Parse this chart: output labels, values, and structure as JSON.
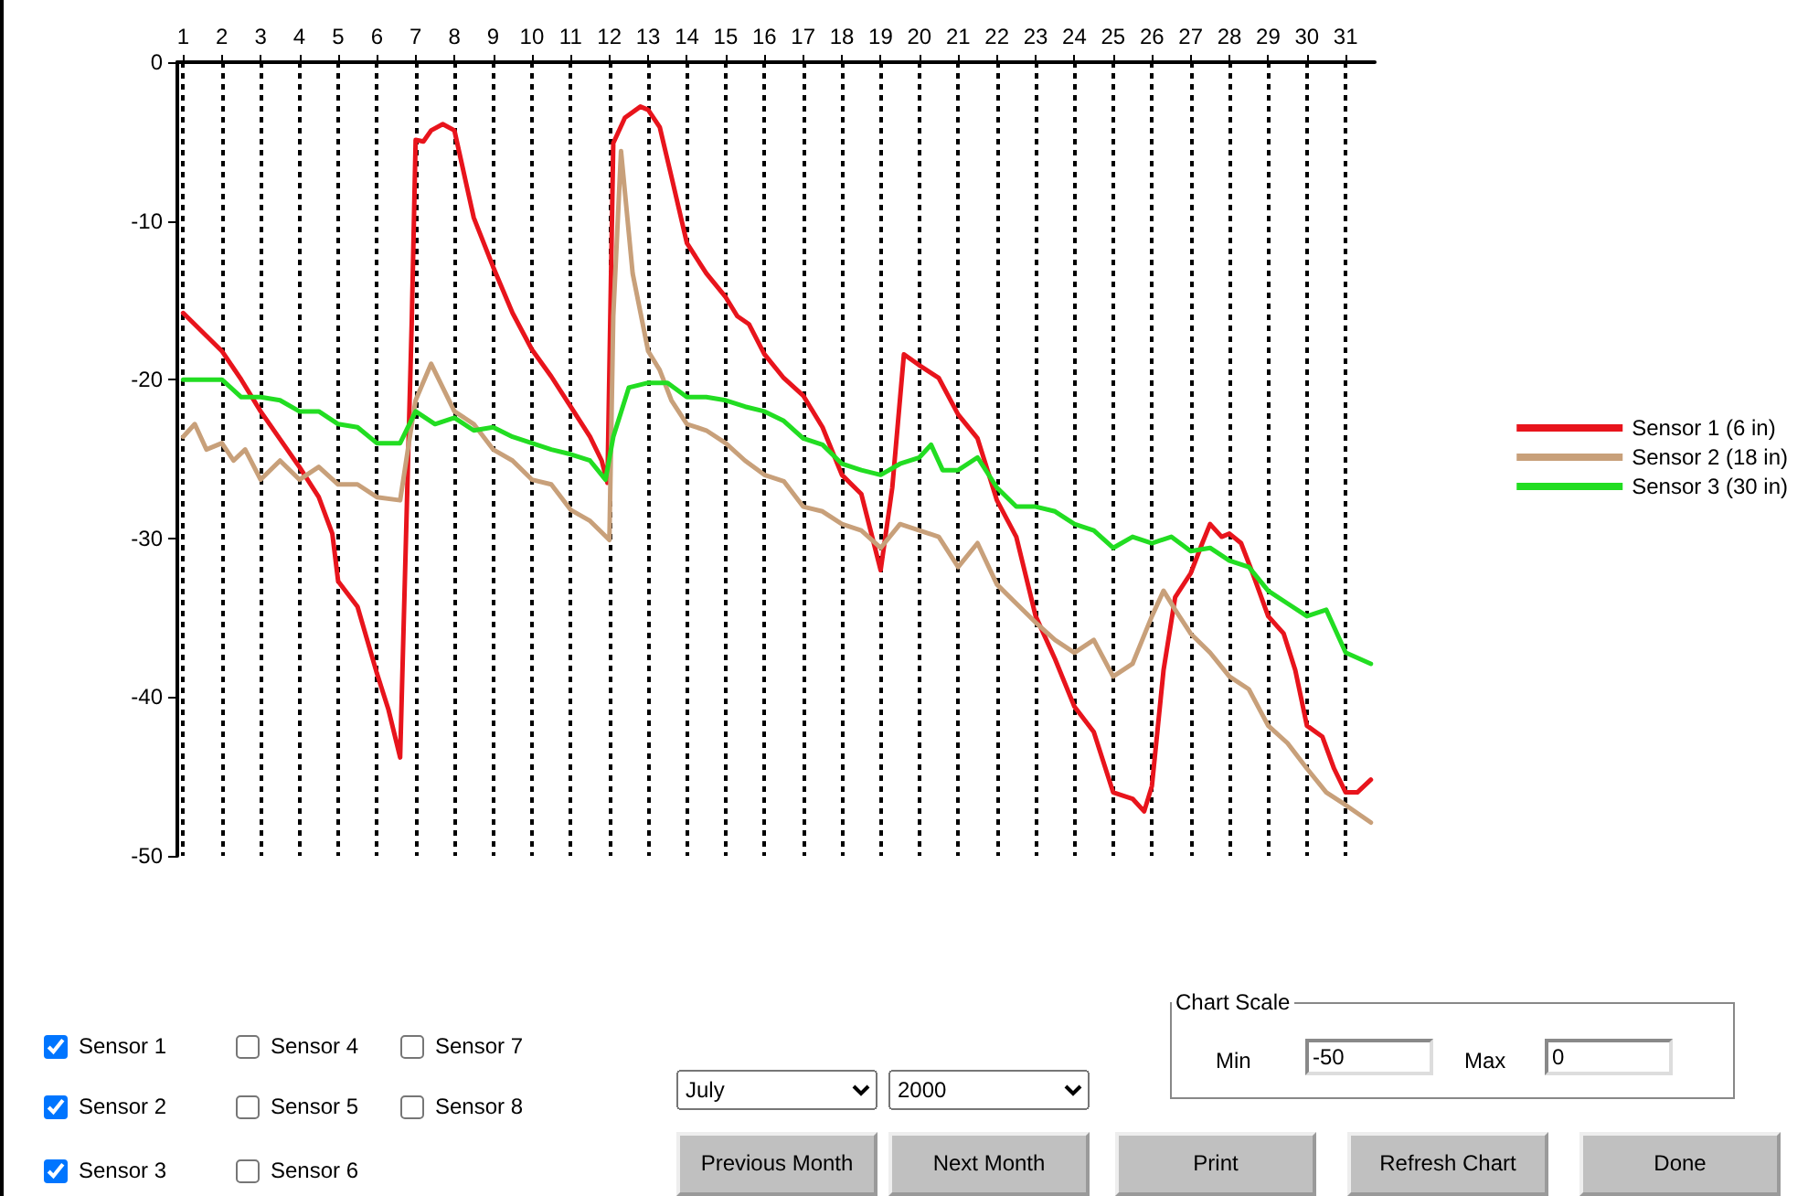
{
  "chart_data": {
    "type": "line",
    "xlim": [
      0.85,
      31.75
    ],
    "xticks": [
      1,
      2,
      3,
      4,
      5,
      6,
      7,
      8,
      9,
      10,
      11,
      12,
      13,
      14,
      15,
      16,
      17,
      18,
      19,
      20,
      21,
      22,
      23,
      24,
      25,
      26,
      27,
      28,
      29,
      30,
      31
    ],
    "ylim": [
      -50,
      0
    ],
    "yticks": [
      -50,
      -40,
      -30,
      -20,
      -10,
      0
    ],
    "grid": "x",
    "legend": "right",
    "marker": "none",
    "line_style": "solid",
    "series": [
      {
        "name": "Sensor 1 (6 in)",
        "color": "#e8141c",
        "x": [
          1,
          2,
          2.5,
          3,
          4,
          4.5,
          4.85,
          5,
          5.5,
          6,
          6.3,
          6.6,
          6.9,
          7,
          7.2,
          7.4,
          7.7,
          8,
          8.3,
          8.5,
          9,
          9.5,
          10,
          10.5,
          11,
          11.5,
          11.8,
          11.95,
          12.1,
          12.4,
          12.8,
          13,
          13.3,
          13.6,
          14,
          14.5,
          15,
          15.3,
          15.6,
          16,
          16.5,
          17,
          17.5,
          18,
          18.5,
          19,
          19.3,
          19.6,
          20,
          20.5,
          21,
          21.5,
          22,
          22.5,
          23,
          23.5,
          24,
          24.5,
          25,
          25.5,
          25.8,
          26,
          26.3,
          26.6,
          27,
          27.3,
          27.5,
          27.8,
          28,
          28.3,
          28.6,
          29,
          29.4,
          29.7,
          30,
          30.4,
          30.7,
          31,
          31.3,
          31.65
        ],
        "values": [
          -15.8,
          -18.2,
          -20,
          -22,
          -25.5,
          -27.4,
          -29.7,
          -32.7,
          -34.3,
          -38.5,
          -40.8,
          -43.8,
          -16.3,
          -4.9,
          -5,
          -4.3,
          -3.9,
          -4.3,
          -7.6,
          -9.8,
          -12.9,
          -15.8,
          -18.1,
          -19.8,
          -21.7,
          -23.6,
          -25.1,
          -26.5,
          -5.1,
          -3.5,
          -2.8,
          -3,
          -4.1,
          -7.2,
          -11.4,
          -13.3,
          -14.8,
          -16,
          -16.5,
          -18.4,
          -19.9,
          -21,
          -23,
          -26,
          -27.2,
          -32,
          -26.8,
          -18.4,
          -19.1,
          -19.9,
          -22.2,
          -23.7,
          -27.6,
          -29.9,
          -34.9,
          -37.6,
          -40.6,
          -42.2,
          -46,
          -46.4,
          -47.2,
          -45.6,
          -38.3,
          -33.7,
          -32.2,
          -30.3,
          -29.1,
          -29.9,
          -29.7,
          -30.3,
          -32.2,
          -34.9,
          -36,
          -38.3,
          -41.8,
          -42.5,
          -44.5,
          -46,
          -46,
          -45.2
        ]
      },
      {
        "name": "Sensor 2 (18 in)",
        "color": "#c8a07a",
        "x": [
          1,
          1.3,
          1.6,
          2,
          2.3,
          2.6,
          3,
          3.5,
          4,
          4.5,
          5,
          5.5,
          6,
          6.6,
          6.9,
          7,
          7.4,
          8,
          8.5,
          9,
          9.5,
          10,
          10.5,
          11,
          11.5,
          12,
          12.1,
          12.3,
          12.6,
          13,
          13.3,
          13.6,
          14,
          14.5,
          15,
          15.5,
          16,
          16.5,
          17,
          17.5,
          18,
          18.5,
          19,
          19.5,
          20,
          20.5,
          21,
          21.5,
          22,
          22.5,
          23,
          23.5,
          24,
          24.5,
          25,
          25.5,
          26,
          26.3,
          26.6,
          27,
          27.5,
          28,
          28.5,
          29,
          29.5,
          30,
          30.5,
          31,
          31.65
        ],
        "values": [
          -23.6,
          -22.8,
          -24.4,
          -24,
          -25.1,
          -24.4,
          -26.3,
          -25.1,
          -26.3,
          -25.5,
          -26.6,
          -26.6,
          -27.4,
          -27.6,
          -22.8,
          -21.3,
          -19,
          -22,
          -22.8,
          -24.4,
          -25.1,
          -26.3,
          -26.6,
          -28.2,
          -28.9,
          -30.1,
          -16,
          -5.6,
          -13.3,
          -18.2,
          -19.4,
          -21.3,
          -22.8,
          -23.2,
          -24,
          -25.1,
          -26,
          -26.4,
          -28,
          -28.3,
          -29.1,
          -29.5,
          -30.6,
          -29.1,
          -29.5,
          -29.9,
          -31.8,
          -30.3,
          -32.9,
          -34.1,
          -35.3,
          -36.4,
          -37.2,
          -36.4,
          -38.7,
          -37.9,
          -34.9,
          -33.3,
          -34.5,
          -36,
          -37.2,
          -38.7,
          -39.5,
          -41.8,
          -42.9,
          -44.5,
          -46,
          -46.8,
          -47.9
        ]
      },
      {
        "name": "Sensor 3 (30 in)",
        "color": "#22dd22",
        "x": [
          1,
          2,
          2.5,
          3,
          3.5,
          4,
          4.5,
          5,
          5.5,
          6,
          6.6,
          7,
          7.5,
          8,
          8.5,
          9,
          9.5,
          10,
          10.5,
          11,
          11.5,
          11.9,
          12.1,
          12.5,
          13,
          13.5,
          14,
          14.5,
          15,
          15.5,
          16,
          16.5,
          17,
          17.5,
          18,
          18.5,
          19,
          19.5,
          20,
          20.3,
          20.6,
          21,
          21.5,
          22,
          22.5,
          23,
          23.5,
          24,
          24.5,
          25,
          25.5,
          26,
          26.5,
          27,
          27.5,
          28,
          28.5,
          29,
          29.5,
          30,
          30.5,
          31,
          31.65
        ],
        "values": [
          -20,
          -20,
          -21.1,
          -21.1,
          -21.3,
          -22,
          -22,
          -22.8,
          -23,
          -24,
          -24,
          -22,
          -22.8,
          -22.4,
          -23.2,
          -23,
          -23.6,
          -24,
          -24.4,
          -24.7,
          -25.1,
          -26.3,
          -23.6,
          -20.5,
          -20.2,
          -20.2,
          -21.1,
          -21.1,
          -21.3,
          -21.7,
          -22,
          -22.6,
          -23.7,
          -24.1,
          -25.3,
          -25.7,
          -26,
          -25.3,
          -24.9,
          -24.1,
          -25.7,
          -25.7,
          -24.9,
          -26.8,
          -28,
          -28,
          -28.3,
          -29.1,
          -29.5,
          -30.6,
          -29.9,
          -30.3,
          -29.9,
          -30.8,
          -30.6,
          -31.4,
          -31.8,
          -33.3,
          -34.1,
          -34.9,
          -34.5,
          -37.2,
          -37.9
        ]
      }
    ],
    "annotations": [
      "Sensor 1",
      "Sensor 2",
      "Sensor 3",
      "Sensor 4",
      "Sensor 5",
      "Sensor 6",
      "Sensor 7",
      "Sensor 8",
      "July",
      "2000",
      "Chart Scale",
      "Min",
      "-50",
      "Max",
      "0",
      "Previous Month",
      "Next Month",
      "Print",
      "Refresh Chart",
      "Done"
    ]
  }
}
